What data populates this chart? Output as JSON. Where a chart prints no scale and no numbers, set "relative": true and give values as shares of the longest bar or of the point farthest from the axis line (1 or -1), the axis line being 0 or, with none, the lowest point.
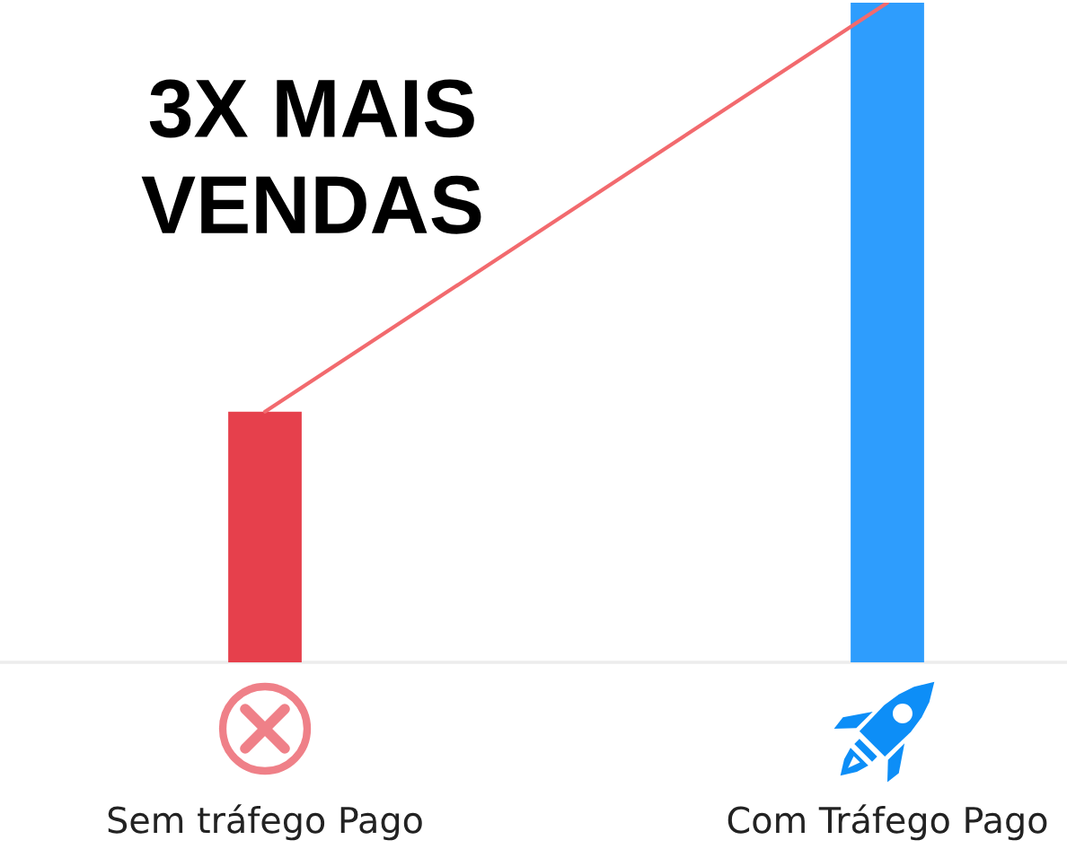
{
  "chart_data": {
    "type": "bar",
    "title": "3X MAIS\nVENDAS",
    "categories": [
      "Sem tráfego Pago",
      "Com Tráfego Pago"
    ],
    "relative": true,
    "series": [
      {
        "colors": [
          "#e6404c",
          "#2e9dfd"
        ],
        "values": [
          0.38,
          1
        ]
      },
      {
        "type": "line",
        "color": "#f26a6e",
        "values": [
          0.38,
          1
        ]
      }
    ]
  }
}
